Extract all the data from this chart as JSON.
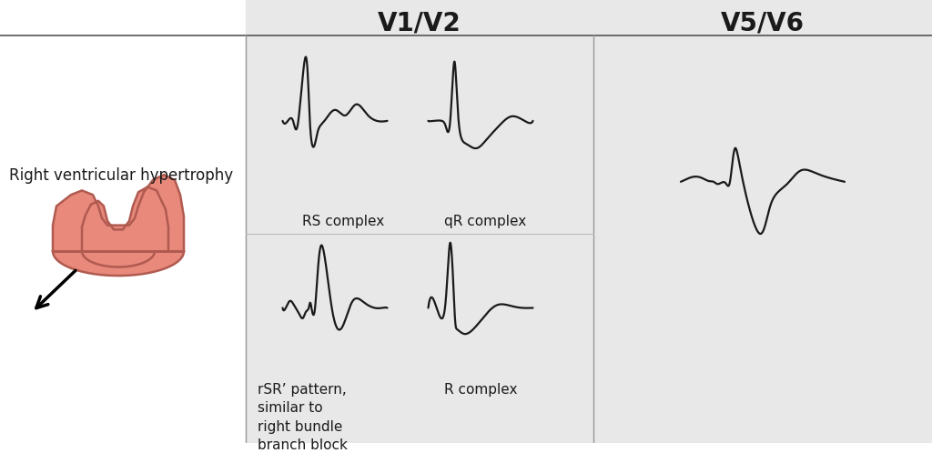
{
  "title_v1v2": "V1/V2",
  "title_v5v6": "V5/V6",
  "label_rs": "RS complex",
  "label_qr": "qR complex",
  "label_rsr": "rSR’ pattern,\nsimilar to\nright bundle\nbranch block",
  "label_r": "R complex",
  "label_rvh": "Right ventricular hypertrophy",
  "bg_color": "#ffffff",
  "panel_bg": "#e8e8e8",
  "line_color": "#1a1a1a",
  "text_color": "#1a1a1a",
  "heart_fill": "#e8897c",
  "heart_edge": "#b05a50",
  "title_fontsize": 20,
  "label_fontsize": 11,
  "rvh_fontsize": 12
}
